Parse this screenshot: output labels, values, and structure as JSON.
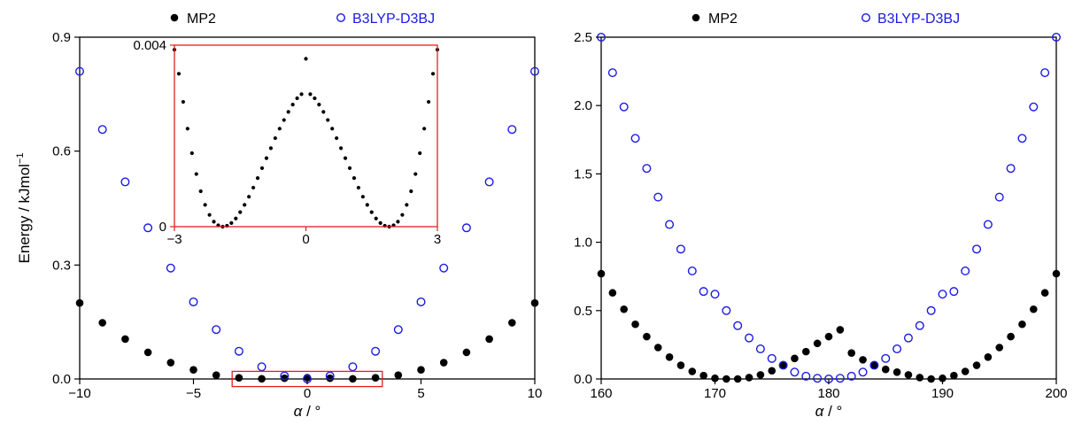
{
  "colors": {
    "mp2": "#000000",
    "b3lyp": "#1a1ae6",
    "inset_frame": "#e02020"
  },
  "chart_data": [
    {
      "type": "scatter",
      "panel": "left",
      "xlabel_symbol": "α",
      "xlabel_unit": " / °",
      "ylabel": "Energy / kJmol",
      "ylabel_sup": "−1",
      "xlim": [
        -10,
        10
      ],
      "ylim": [
        0,
        0.9
      ],
      "xticks": [
        -10,
        -5,
        0,
        5,
        10
      ],
      "xtick_labels": [
        "−10",
        "−5",
        "0",
        "5",
        "10"
      ],
      "yticks": [
        0,
        0.3,
        0.6,
        0.9
      ],
      "ytick_labels": [
        "0.0",
        "0.3",
        "0.6",
        "0.9"
      ],
      "legend": [
        "MP2",
        "B3LYP-D3BJ"
      ],
      "legend_position": "top",
      "series": [
        {
          "name": "MP2",
          "marker": "filled-circle",
          "x": [
            -10,
            -9,
            -8,
            -7,
            -6,
            -5,
            -4,
            -3,
            -2,
            -1,
            0,
            1,
            2,
            3,
            4,
            5,
            6,
            7,
            8,
            9,
            10
          ],
          "y": [
            0.2,
            0.148,
            0.105,
            0.07,
            0.043,
            0.024,
            0.01,
            0.003,
            0.0005,
            0.002,
            0.0035,
            0.002,
            0.0005,
            0.003,
            0.01,
            0.024,
            0.043,
            0.07,
            0.105,
            0.148,
            0.2
          ]
        },
        {
          "name": "B3LYP-D3BJ",
          "marker": "open-circle",
          "x": [
            -10,
            -9,
            -8,
            -7,
            -6,
            -5,
            -4,
            -3,
            -2,
            -1,
            0,
            1,
            2,
            3,
            4,
            5,
            6,
            7,
            8,
            9,
            10
          ],
          "y": [
            0.81,
            0.657,
            0.519,
            0.398,
            0.292,
            0.203,
            0.13,
            0.073,
            0.032,
            0.008,
            0.0,
            0.008,
            0.032,
            0.073,
            0.13,
            0.203,
            0.292,
            0.398,
            0.519,
            0.657,
            0.81
          ]
        }
      ],
      "highlight_box": {
        "x": [
          -3.3,
          3.3
        ],
        "y": [
          -0.02,
          0.02
        ]
      }
    },
    {
      "type": "scatter",
      "panel": "inset",
      "xlim": [
        -3,
        3
      ],
      "ylim": [
        0,
        0.004
      ],
      "xticks": [
        -3,
        0,
        3
      ],
      "xtick_labels": [
        "−3",
        "0",
        "3"
      ],
      "yticks": [
        0,
        0.004
      ],
      "ytick_labels": [
        "0",
        "0.004"
      ],
      "series": [
        {
          "name": "MP2",
          "marker": "filled-circle",
          "x": [
            -3,
            -2.9,
            -2.8,
            -2.7,
            -2.6,
            -2.5,
            -2.4,
            -2.3,
            -2.2,
            -2.1,
            -2,
            -1.9,
            -1.8,
            -1.7,
            -1.6,
            -1.5,
            -1.4,
            -1.3,
            -1.2,
            -1.1,
            -1,
            -0.9,
            -0.8,
            -0.7,
            -0.6,
            -0.5,
            -0.4,
            -0.3,
            -0.2,
            -0.1,
            0,
            0.1,
            0.2,
            0.3,
            0.4,
            0.5,
            0.6,
            0.7,
            0.8,
            0.9,
            1,
            1.1,
            1.2,
            1.3,
            1.4,
            1.5,
            1.6,
            1.7,
            1.8,
            1.9,
            2,
            2.1,
            2.2,
            2.3,
            2.4,
            2.5,
            2.6,
            2.7,
            2.8,
            2.9,
            3
          ],
          "y": [
            0.0039,
            0.00337,
            0.00275,
            0.00216,
            0.00162,
            0.00116,
            0.00078,
            0.00048,
            0.00026,
            0.00011,
            3e-05,
            0.0,
            2e-05,
            8e-05,
            0.00018,
            0.00032,
            0.00048,
            0.00066,
            0.00086,
            0.00107,
            0.00129,
            0.00151,
            0.00173,
            0.00195,
            0.00216,
            0.00235,
            0.00253,
            0.00269,
            0.00283,
            0.00292,
            0.0037,
            0.00292,
            0.00283,
            0.00269,
            0.00253,
            0.00235,
            0.00216,
            0.00195,
            0.00173,
            0.00151,
            0.00129,
            0.00107,
            0.00086,
            0.00066,
            0.00048,
            0.00032,
            0.00018,
            8e-05,
            2e-05,
            0.0,
            3e-05,
            0.00011,
            0.00026,
            0.00048,
            0.00078,
            0.00116,
            0.00162,
            0.00216,
            0.00275,
            0.00337,
            0.0039
          ]
        }
      ]
    },
    {
      "type": "scatter",
      "panel": "right",
      "xlabel_symbol": "α",
      "xlabel_unit": " / °",
      "xlim": [
        160,
        200
      ],
      "ylim": [
        0,
        2.5
      ],
      "xticks": [
        160,
        170,
        180,
        190,
        200
      ],
      "xtick_labels": [
        "160",
        "170",
        "180",
        "190",
        "200"
      ],
      "yticks": [
        0,
        0.5,
        1.0,
        1.5,
        2.0,
        2.5
      ],
      "ytick_labels": [
        "0.0",
        "0.5",
        "1.0",
        "1.5",
        "2.0",
        "2.5"
      ],
      "legend": [
        "MP2",
        "B3LYP-D3BJ"
      ],
      "legend_position": "top",
      "series": [
        {
          "name": "MP2",
          "marker": "filled-circle",
          "x": [
            160,
            161,
            162,
            163,
            164,
            165,
            166,
            167,
            168,
            169,
            170,
            171,
            172,
            173,
            174,
            175,
            176,
            177,
            178,
            179,
            180,
            181,
            182,
            183,
            184,
            185,
            186,
            187,
            188,
            189,
            190,
            191,
            192,
            193,
            194,
            195,
            196,
            197,
            198,
            199,
            200
          ],
          "y": [
            0.77,
            0.63,
            0.51,
            0.4,
            0.31,
            0.23,
            0.16,
            0.1,
            0.055,
            0.025,
            0.005,
            0.0,
            0.0,
            0.01,
            0.03,
            0.06,
            0.1,
            0.15,
            0.2,
            0.26,
            0.31,
            0.36,
            0.19,
            0.14,
            0.1,
            0.07,
            0.05,
            0.03,
            0.01,
            0.0,
            0.005,
            0.025,
            0.055,
            0.1,
            0.16,
            0.23,
            0.31,
            0.4,
            0.51,
            0.63,
            0.77
          ]
        },
        {
          "name": "B3LYP-D3BJ",
          "marker": "open-circle",
          "x": [
            160,
            161,
            162,
            163,
            164,
            165,
            166,
            167,
            168,
            169,
            170,
            171,
            172,
            173,
            174,
            175,
            176,
            177,
            178,
            179,
            180,
            181,
            182,
            183,
            184,
            185,
            186,
            187,
            188,
            189,
            190,
            191,
            192,
            193,
            194,
            195,
            196,
            197,
            198,
            199,
            200
          ],
          "y": [
            2.5,
            2.24,
            1.99,
            1.76,
            1.54,
            1.33,
            1.13,
            0.95,
            0.79,
            0.64,
            0.62,
            0.5,
            0.39,
            0.3,
            0.22,
            0.15,
            0.1,
            0.05,
            0.02,
            0.005,
            0.0,
            0.005,
            0.02,
            0.05,
            0.1,
            0.15,
            0.22,
            0.3,
            0.39,
            0.5,
            0.62,
            0.64,
            0.79,
            0.95,
            1.13,
            1.33,
            1.54,
            1.76,
            1.99,
            2.24,
            2.5
          ]
        }
      ]
    }
  ]
}
